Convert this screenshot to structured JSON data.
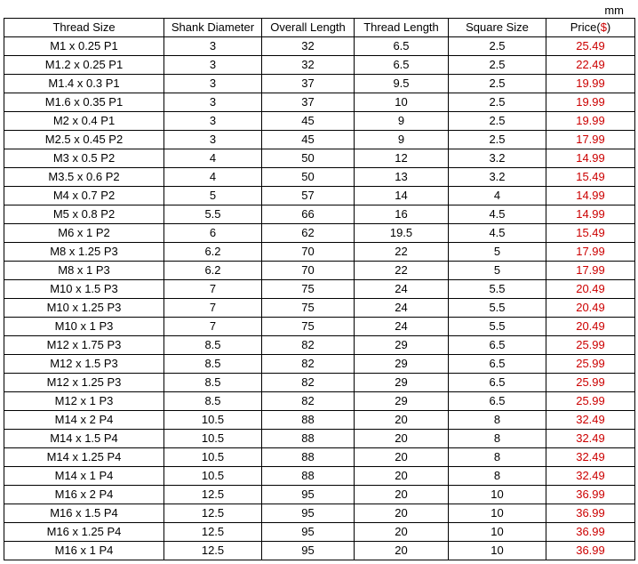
{
  "unit_label": "mm",
  "price_header_prefix": "Price(",
  "price_header_suffix": ")",
  "price_header_currency": "$",
  "columns": [
    "Thread Size",
    "Shank Diameter",
    "Overall Length",
    "Thread Length",
    "Square Size"
  ],
  "colors": {
    "price_color": "#cc0000",
    "text_color": "#000000",
    "border_color": "#000000",
    "background": "#ffffff"
  },
  "rows": [
    {
      "thread": "M1 x 0.25  P1",
      "shank": "3",
      "overall": "32",
      "tlen": "6.5",
      "sq": "2.5",
      "price": "25.49"
    },
    {
      "thread": "M1.2 x 0.25  P1",
      "shank": "3",
      "overall": "32",
      "tlen": "6.5",
      "sq": "2.5",
      "price": "22.49"
    },
    {
      "thread": "M1.4 x 0.3  P1",
      "shank": "3",
      "overall": "37",
      "tlen": "9.5",
      "sq": "2.5",
      "price": "19.99"
    },
    {
      "thread": "M1.6 x 0.35  P1",
      "shank": "3",
      "overall": "37",
      "tlen": "10",
      "sq": "2.5",
      "price": "19.99"
    },
    {
      "thread": "M2 x 0.4  P1",
      "shank": "3",
      "overall": "45",
      "tlen": "9",
      "sq": "2.5",
      "price": "19.99"
    },
    {
      "thread": "M2.5 x 0.45  P2",
      "shank": "3",
      "overall": "45",
      "tlen": "9",
      "sq": "2.5",
      "price": "17.99"
    },
    {
      "thread": "M3 x 0.5  P2",
      "shank": "4",
      "overall": "50",
      "tlen": "12",
      "sq": "3.2",
      "price": "14.99"
    },
    {
      "thread": "M3.5 x 0.6  P2",
      "shank": "4",
      "overall": "50",
      "tlen": "13",
      "sq": "3.2",
      "price": "15.49"
    },
    {
      "thread": "M4 x 0.7  P2",
      "shank": "5",
      "overall": "57",
      "tlen": "14",
      "sq": "4",
      "price": "14.99"
    },
    {
      "thread": "M5 x 0.8  P2",
      "shank": "5.5",
      "overall": "66",
      "tlen": "16",
      "sq": "4.5",
      "price": "14.99"
    },
    {
      "thread": "M6 x 1  P2",
      "shank": "6",
      "overall": "62",
      "tlen": "19.5",
      "sq": "4.5",
      "price": "15.49"
    },
    {
      "thread": "M8 x 1.25  P3",
      "shank": "6.2",
      "overall": "70",
      "tlen": "22",
      "sq": "5",
      "price": "17.99"
    },
    {
      "thread": "M8 x 1  P3",
      "shank": "6.2",
      "overall": "70",
      "tlen": "22",
      "sq": "5",
      "price": "17.99"
    },
    {
      "thread": "M10 x 1.5  P3",
      "shank": "7",
      "overall": "75",
      "tlen": "24",
      "sq": "5.5",
      "price": "20.49"
    },
    {
      "thread": "M10 x 1.25  P3",
      "shank": "7",
      "overall": "75",
      "tlen": "24",
      "sq": "5.5",
      "price": "20.49"
    },
    {
      "thread": "M10 x 1  P3",
      "shank": "7",
      "overall": "75",
      "tlen": "24",
      "sq": "5.5",
      "price": "20.49"
    },
    {
      "thread": "M12 x 1.75  P3",
      "shank": "8.5",
      "overall": "82",
      "tlen": "29",
      "sq": "6.5",
      "price": "25.99"
    },
    {
      "thread": "M12 x 1.5  P3",
      "shank": "8.5",
      "overall": "82",
      "tlen": "29",
      "sq": "6.5",
      "price": "25.99"
    },
    {
      "thread": "M12 x 1.25  P3",
      "shank": "8.5",
      "overall": "82",
      "tlen": "29",
      "sq": "6.5",
      "price": "25.99"
    },
    {
      "thread": "M12 x 1  P3",
      "shank": "8.5",
      "overall": "82",
      "tlen": "29",
      "sq": "6.5",
      "price": "25.99"
    },
    {
      "thread": "M14 x 2  P4",
      "shank": "10.5",
      "overall": "88",
      "tlen": "20",
      "sq": "8",
      "price": "32.49"
    },
    {
      "thread": "M14 x 1.5  P4",
      "shank": "10.5",
      "overall": "88",
      "tlen": "20",
      "sq": "8",
      "price": "32.49"
    },
    {
      "thread": "M14 x 1.25  P4",
      "shank": "10.5",
      "overall": "88",
      "tlen": "20",
      "sq": "8",
      "price": "32.49"
    },
    {
      "thread": "M14 x 1  P4",
      "shank": "10.5",
      "overall": "88",
      "tlen": "20",
      "sq": "8",
      "price": "32.49"
    },
    {
      "thread": "M16 x 2  P4",
      "shank": "12.5",
      "overall": "95",
      "tlen": "20",
      "sq": "10",
      "price": "36.99"
    },
    {
      "thread": "M16 x 1.5  P4",
      "shank": "12.5",
      "overall": "95",
      "tlen": "20",
      "sq": "10",
      "price": "36.99"
    },
    {
      "thread": "M16 x 1.25  P4",
      "shank": "12.5",
      "overall": "95",
      "tlen": "20",
      "sq": "10",
      "price": "36.99"
    },
    {
      "thread": "M16 x 1  P4",
      "shank": "12.5",
      "overall": "95",
      "tlen": "20",
      "sq": "10",
      "price": "36.99"
    }
  ]
}
